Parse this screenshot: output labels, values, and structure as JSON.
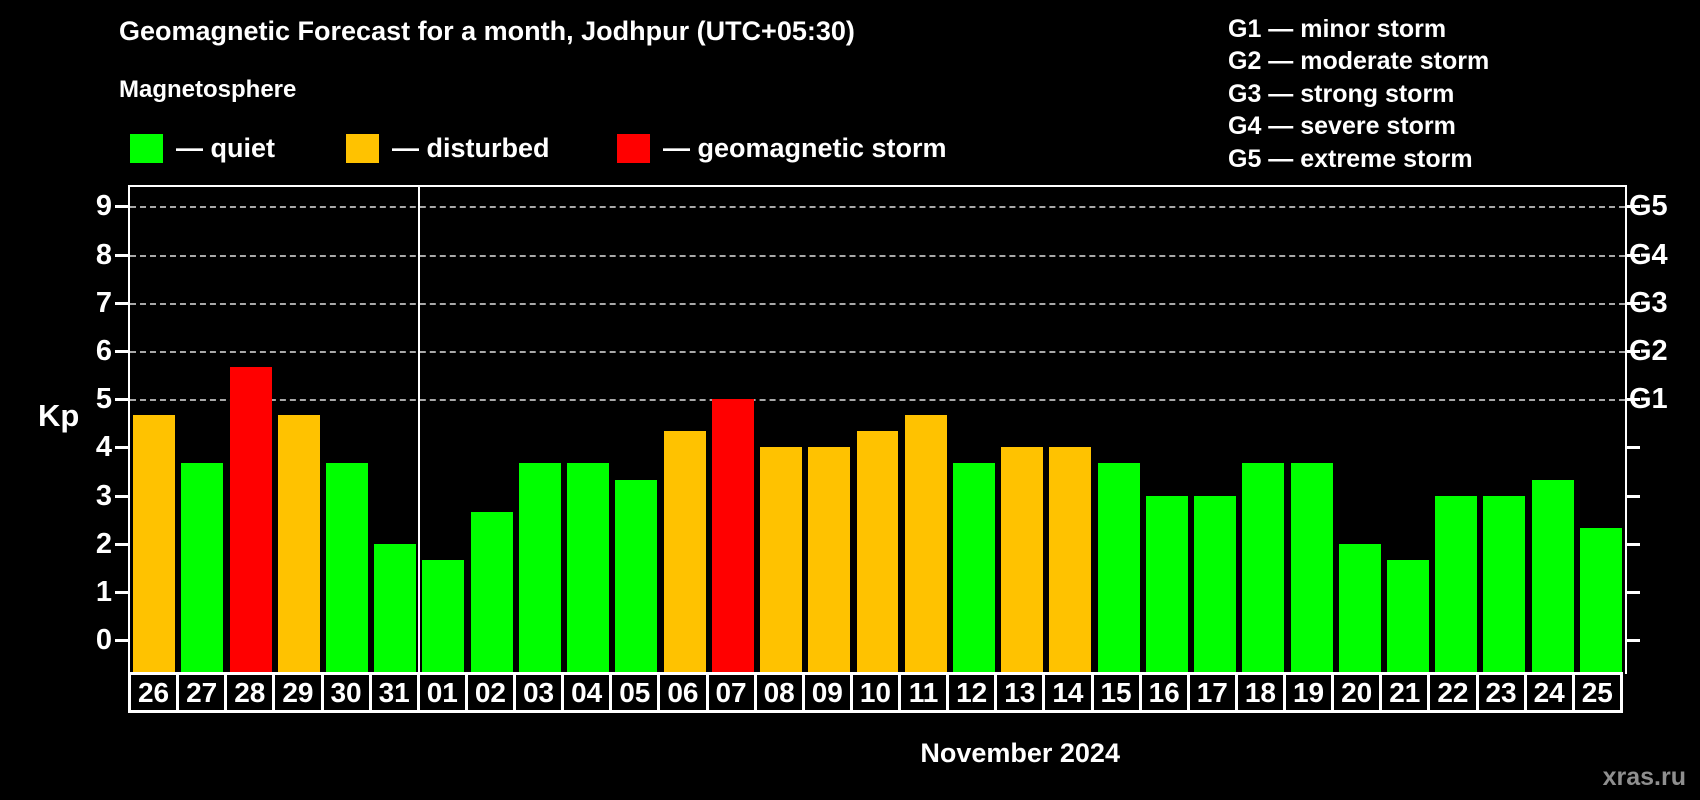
{
  "title": "Geomagnetic Forecast for a month, Jodhpur (UTC+05:30)",
  "subtitle": "Magnetosphere",
  "legend": {
    "quiet": {
      "label": "— quiet",
      "color": "#00ff00"
    },
    "disturbed": {
      "label": "— disturbed",
      "color": "#ffc200"
    },
    "storm": {
      "label": "— geomagnetic storm",
      "color": "#ff0000"
    }
  },
  "storm_scale_legend": [
    "G1 — minor storm",
    "G2 — moderate storm",
    "G3 — strong storm",
    "G4 — severe storm",
    "G5 — extreme storm"
  ],
  "axis": {
    "kp_label": "Kp",
    "y_ticks": [
      "0",
      "1",
      "2",
      "3",
      "4",
      "5",
      "6",
      "7",
      "8",
      "9"
    ],
    "g_ticks": [
      {
        "label": "G1",
        "kp": 5
      },
      {
        "label": "G2",
        "kp": 6
      },
      {
        "label": "G3",
        "kp": 7
      },
      {
        "label": "G4",
        "kp": 8
      },
      {
        "label": "G5",
        "kp": 9
      }
    ],
    "month_label": "November 2024"
  },
  "watermark": "xras.ru",
  "chart_data": {
    "type": "bar",
    "title": "Geomagnetic Forecast for a month, Jodhpur (UTC+05:30)",
    "xlabel": "November 2024",
    "ylabel": "Kp",
    "ylim": [
      0,
      9
    ],
    "grid": "horizontal dashed at Kp 5-9 (G1-G5)",
    "legend_position": "top",
    "month_separator_after_index": 5,
    "categories": [
      "26",
      "27",
      "28",
      "29",
      "30",
      "31",
      "01",
      "02",
      "03",
      "04",
      "05",
      "06",
      "07",
      "08",
      "09",
      "10",
      "11",
      "12",
      "13",
      "14",
      "15",
      "16",
      "17",
      "18",
      "19",
      "20",
      "21",
      "22",
      "23",
      "24",
      "25"
    ],
    "values": [
      4.67,
      3.67,
      5.67,
      4.67,
      3.67,
      2.0,
      1.67,
      2.67,
      3.67,
      3.67,
      3.33,
      4.33,
      5.0,
      4.0,
      4.0,
      4.33,
      4.67,
      3.67,
      4.0,
      4.0,
      3.67,
      3.0,
      3.0,
      3.67,
      3.67,
      2.0,
      1.67,
      3.0,
      3.0,
      3.33,
      2.33
    ],
    "statuses": [
      "disturbed",
      "quiet",
      "storm",
      "disturbed",
      "quiet",
      "quiet",
      "quiet",
      "quiet",
      "quiet",
      "quiet",
      "quiet",
      "disturbed",
      "storm",
      "disturbed",
      "disturbed",
      "disturbed",
      "disturbed",
      "quiet",
      "disturbed",
      "disturbed",
      "quiet",
      "quiet",
      "quiet",
      "quiet",
      "quiet",
      "quiet",
      "quiet",
      "quiet",
      "quiet",
      "quiet",
      "quiet"
    ]
  }
}
